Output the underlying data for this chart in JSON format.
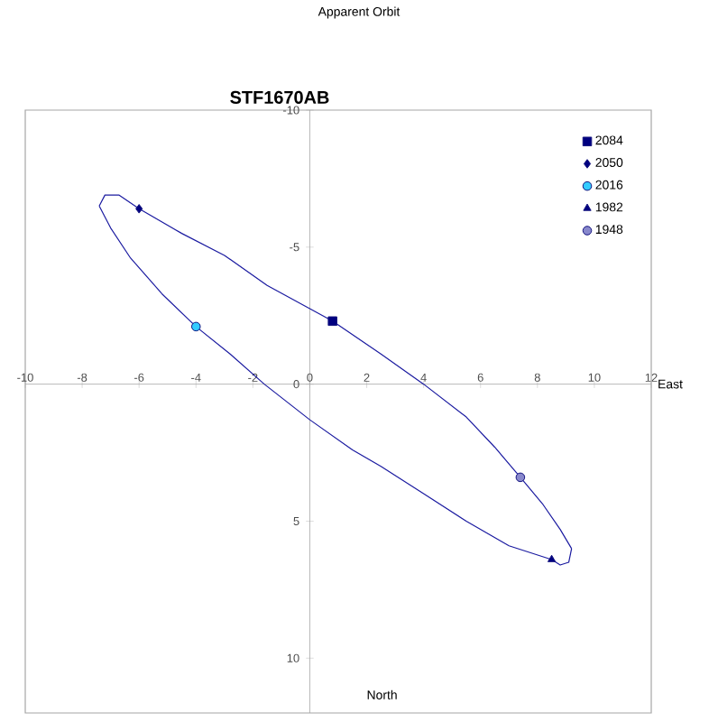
{
  "chart_data": {
    "type": "scatter",
    "title": "Apparent Orbit",
    "subtitle": "STF1670AB",
    "xlabel": "East",
    "ylabel": "North",
    "xlim": [
      -10,
      12
    ],
    "ylim": [
      12,
      -10
    ],
    "xticks": [
      -10,
      -8,
      -6,
      -4,
      -2,
      0,
      2,
      4,
      6,
      8,
      10,
      12
    ],
    "yticks": [
      -10,
      -5,
      0,
      5,
      10
    ],
    "legend": "top right",
    "series": [
      {
        "type": "line",
        "color": "#1a1aa0",
        "marker": "none",
        "x": [
          -7.4,
          -7.2,
          -6.7,
          -6,
          -4.5,
          -3,
          -1.5,
          0.8,
          2.5,
          4,
          5.5,
          6.5,
          7.4,
          8.2,
          8.8,
          9.2
        ],
        "values": [
          -6.5,
          -6.9,
          -6.9,
          -6.4,
          -5.5,
          -4.7,
          -3.6,
          -2.3,
          -1.1,
          0,
          1.2,
          2.3,
          3.4,
          4.4,
          5.3,
          6.0
        ]
      },
      {
        "type": "line",
        "color": "#1a1aa0",
        "marker": "none",
        "x": [
          -7.4,
          -7,
          -6.3,
          -5.2,
          -4,
          -2.8,
          -1.6,
          0,
          1.5,
          2.5,
          4,
          5.5,
          7,
          8.5,
          8.8,
          9.1,
          9.2
        ],
        "values": [
          -6.5,
          -5.7,
          -4.6,
          -3.3,
          -2.1,
          -1.1,
          0,
          1.3,
          2.4,
          3.0,
          4.0,
          5.0,
          5.9,
          6.4,
          6.6,
          6.5,
          6.0
        ]
      },
      {
        "name": "2084",
        "color": "#000080",
        "marker": "square",
        "x": [
          0.8
        ],
        "values": [
          -2.3
        ]
      },
      {
        "name": "2050",
        "color": "#000080",
        "marker": "diamond",
        "x": [
          -6
        ],
        "values": [
          -6.4
        ]
      },
      {
        "name": "2016",
        "color": "#33ccff",
        "marker": "circle",
        "x": [
          -4
        ],
        "values": [
          -2.1
        ]
      },
      {
        "name": "1982",
        "color": "#000080",
        "marker": "triangle",
        "x": [
          8.5
        ],
        "values": [
          6.4
        ]
      },
      {
        "name": "1948",
        "color": "#8888cc",
        "marker": "circle",
        "x": [
          7.4
        ],
        "values": [
          3.4
        ]
      }
    ]
  }
}
